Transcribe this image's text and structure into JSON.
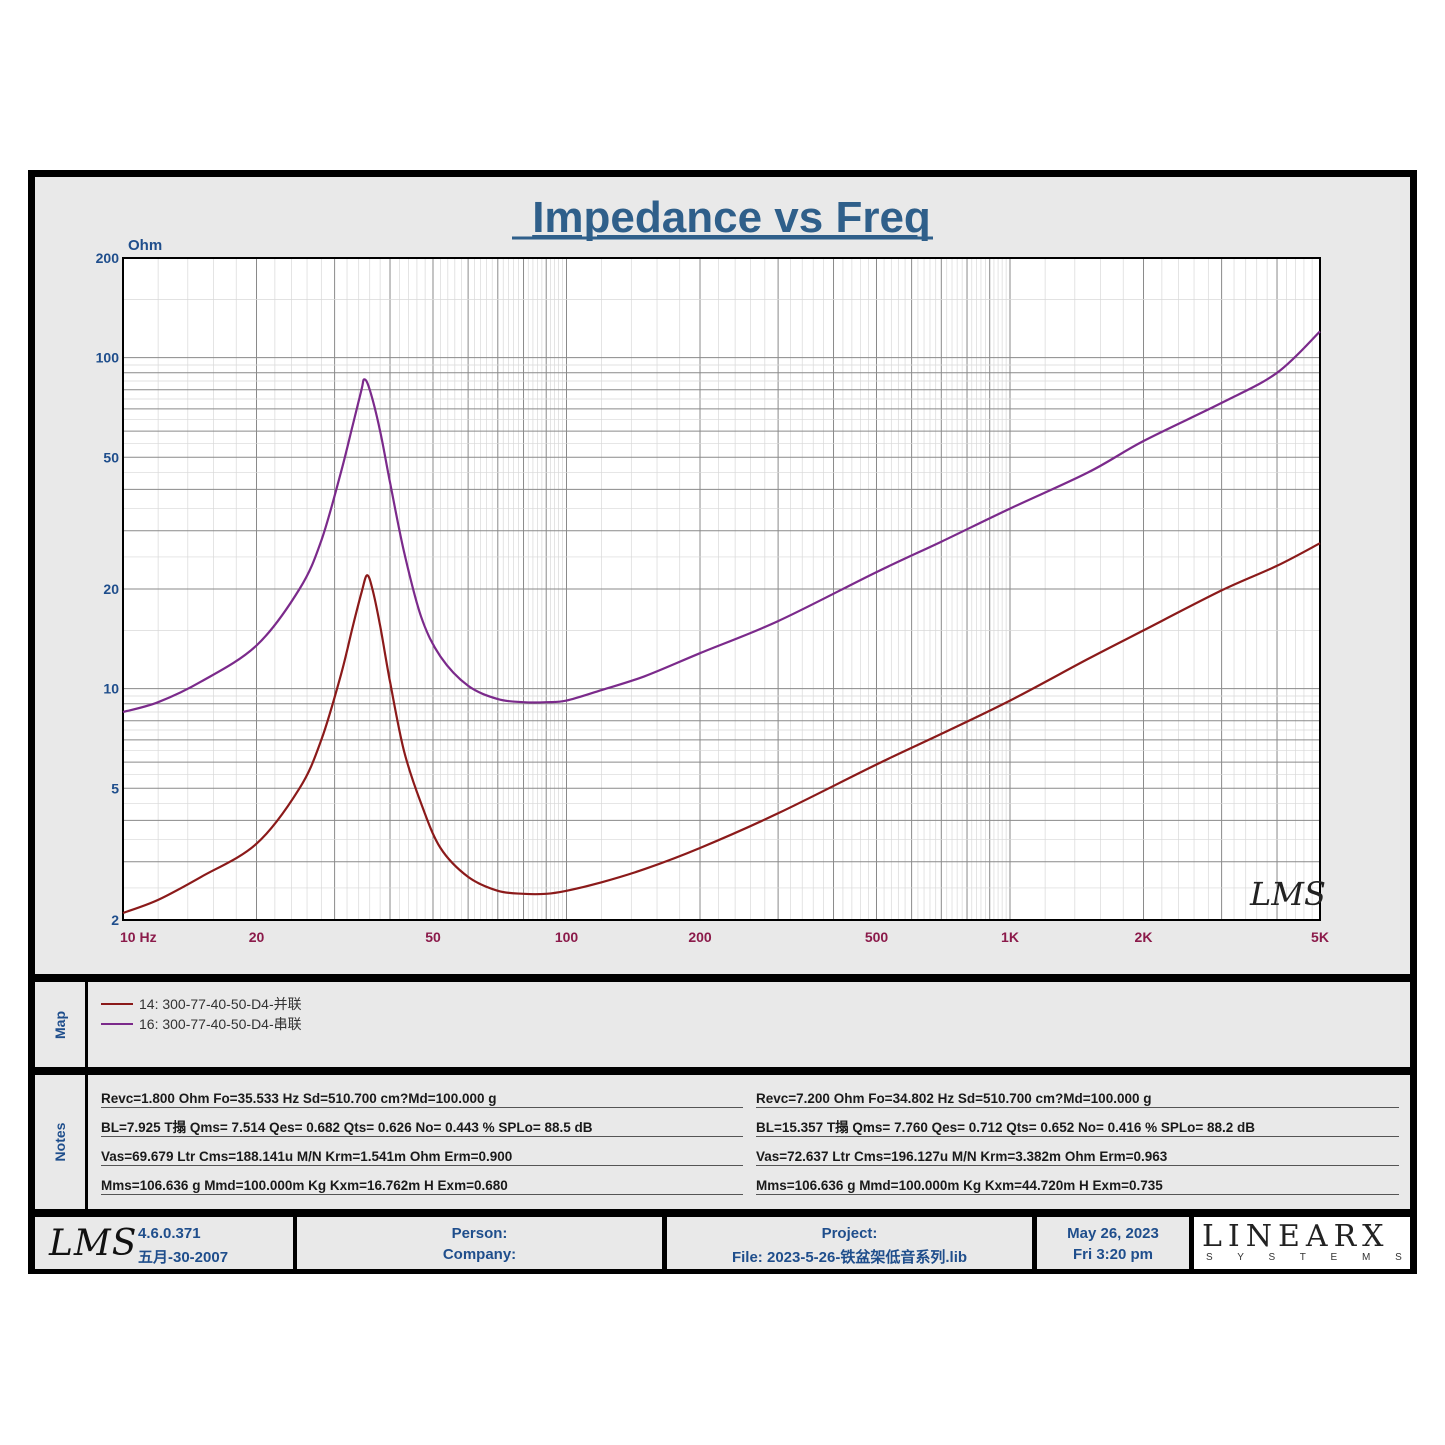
{
  "chart_data": {
    "type": "line",
    "title": "Impedance vs Freq",
    "ylabel": "Ohm",
    "xlabel": "",
    "x_scale": "log",
    "y_scale": "log",
    "xlim": [
      10,
      5000
    ],
    "ylim": [
      2,
      200
    ],
    "x_ticks": [
      {
        "v": 10,
        "label": "10  Hz"
      },
      {
        "v": 20,
        "label": "20"
      },
      {
        "v": 50,
        "label": "50"
      },
      {
        "v": 100,
        "label": "100"
      },
      {
        "v": 200,
        "label": "200"
      },
      {
        "v": 500,
        "label": "500"
      },
      {
        "v": 1000,
        "label": "1K"
      },
      {
        "v": 2000,
        "label": "2K"
      },
      {
        "v": 5000,
        "label": "5K"
      }
    ],
    "y_ticks": [
      {
        "v": 200,
        "label": "200"
      },
      {
        "v": 100,
        "label": "100"
      },
      {
        "v": 50,
        "label": "50"
      },
      {
        "v": 20,
        "label": "20"
      },
      {
        "v": 10,
        "label": "10"
      },
      {
        "v": 5,
        "label": "5"
      },
      {
        "v": 2,
        "label": "2"
      }
    ],
    "grid": true,
    "series": [
      {
        "name": "14: 300-77-40-50-D4-并联",
        "color": "#8b1a1a",
        "points": [
          [
            10,
            2.1
          ],
          [
            12,
            2.3
          ],
          [
            15,
            2.7
          ],
          [
            20,
            3.4
          ],
          [
            25,
            5
          ],
          [
            28,
            7
          ],
          [
            31,
            11
          ],
          [
            33,
            15.5
          ],
          [
            34.5,
            19.5
          ],
          [
            35.5,
            22
          ],
          [
            36.5,
            20
          ],
          [
            38,
            15.5
          ],
          [
            40,
            10.5
          ],
          [
            43,
            6.5
          ],
          [
            47,
            4.5
          ],
          [
            52,
            3.3
          ],
          [
            60,
            2.7
          ],
          [
            70,
            2.45
          ],
          [
            80,
            2.4
          ],
          [
            90,
            2.4
          ],
          [
            100,
            2.45
          ],
          [
            120,
            2.6
          ],
          [
            150,
            2.85
          ],
          [
            200,
            3.3
          ],
          [
            300,
            4.2
          ],
          [
            500,
            5.9
          ],
          [
            700,
            7.3
          ],
          [
            1000,
            9.2
          ],
          [
            1500,
            12.3
          ],
          [
            2000,
            15
          ],
          [
            3000,
            19.8
          ],
          [
            4000,
            23.5
          ],
          [
            5000,
            27.5
          ]
        ]
      },
      {
        "name": "16: 300-77-40-50-D4-串联",
        "color": "#7b2a8b",
        "points": [
          [
            10,
            8.5
          ],
          [
            12,
            9.1
          ],
          [
            15,
            10.5
          ],
          [
            20,
            13.5
          ],
          [
            25,
            20
          ],
          [
            28,
            28
          ],
          [
            31,
            45
          ],
          [
            33,
            63
          ],
          [
            34.5,
            80
          ],
          [
            35,
            86
          ],
          [
            36,
            80
          ],
          [
            38,
            60
          ],
          [
            40,
            42
          ],
          [
            43,
            26
          ],
          [
            47,
            16.5
          ],
          [
            52,
            12.5
          ],
          [
            60,
            10.2
          ],
          [
            70,
            9.3
          ],
          [
            80,
            9.1
          ],
          [
            90,
            9.1
          ],
          [
            100,
            9.2
          ],
          [
            120,
            9.9
          ],
          [
            150,
            10.9
          ],
          [
            200,
            12.8
          ],
          [
            300,
            16
          ],
          [
            500,
            22.5
          ],
          [
            700,
            27.8
          ],
          [
            1000,
            35
          ],
          [
            1500,
            45
          ],
          [
            2000,
            56
          ],
          [
            3000,
            73
          ],
          [
            4000,
            90
          ],
          [
            5000,
            120
          ]
        ]
      }
    ],
    "annotations": [
      "LMS"
    ]
  },
  "map": {
    "label": "Map",
    "entries": [
      {
        "text": "14: 300-77-40-50-D4-并联",
        "color": "#8b1a1a"
      },
      {
        "text": "16: 300-77-40-50-D4-串联",
        "color": "#7b2a8b"
      }
    ]
  },
  "notes": {
    "label": "Notes",
    "left": [
      "Revc=1.800 Ohm  Fo=35.533 Hz  Sd=510.700 cm?Md=100.000 g",
      "BL=7.925 T搨  Qms= 7.514  Qes= 0.682  Qts= 0.626  No= 0.443 %  SPLo= 88.5 dB",
      "Vas=69.679 Ltr  Cms=188.141u M/N  Krm=1.541m Ohm  Erm=0.900",
      "Mms=106.636 g  Mmd=100.000m Kg  Kxm=16.762m H  Exm=0.680"
    ],
    "right": [
      "Revc=7.200 Ohm  Fo=34.802 Hz  Sd=510.700 cm?Md=100.000 g",
      "BL=15.357 T搨  Qms= 7.760  Qes= 0.712  Qts= 0.652  No= 0.416 %  SPLo= 88.2 dB",
      "Vas=72.637 Ltr  Cms=196.127u M/N  Krm=3.382m Ohm  Erm=0.963",
      "Mms=106.636 g  Mmd=100.000m Kg  Kxm=44.720m H  Exm=0.735"
    ]
  },
  "footer": {
    "logo": "LMS",
    "version": "4.6.0.371",
    "version_date": "五月-30-2007",
    "person": "Person:",
    "company": "Company:",
    "project": "Project:",
    "file": "File: 2023-5-26-铁盆架低音系列.lib",
    "date": "May 26, 2023",
    "time": "Fri  3:20 pm",
    "brand": "LINEARX",
    "brand_sub": "S Y S T E M S"
  }
}
